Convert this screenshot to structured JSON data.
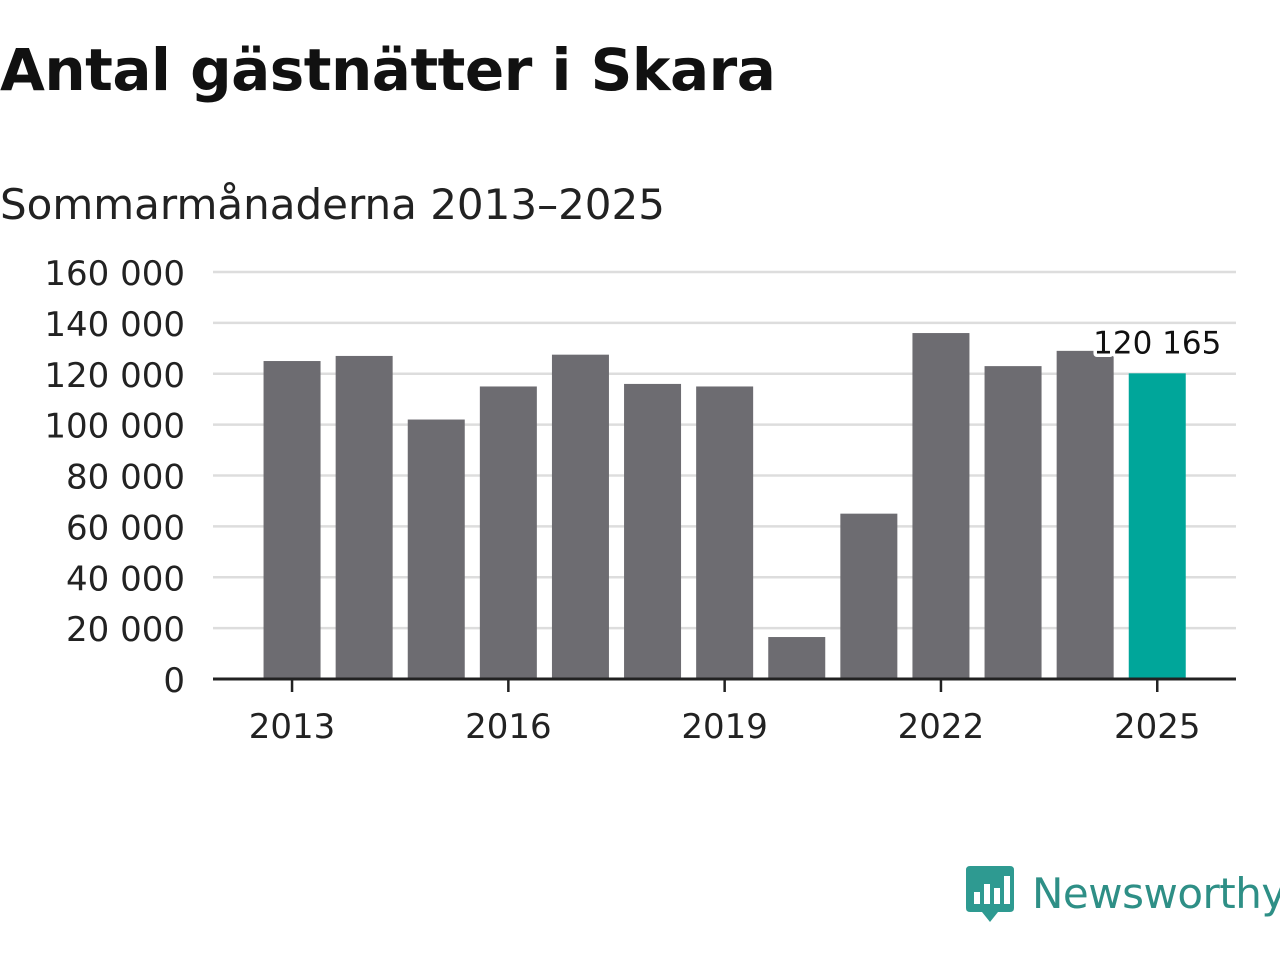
{
  "title": "Antal gästnätter i Skara",
  "subtitle": "Sommarmånaderna 2013–2025",
  "brand": {
    "name": "Newsworthy",
    "icon": "newsworthy-logo-icon",
    "color": "#2e9a91"
  },
  "colors": {
    "bar": "#6d6c71",
    "highlight": "#00a69a",
    "grid": "#dddddd",
    "axis": "#222222",
    "text": "#222222"
  },
  "chart_data": {
    "type": "bar",
    "title": "Antal gästnätter i Skara",
    "subtitle": "Sommarmånaderna 2013–2025",
    "xlabel": "",
    "ylabel": "",
    "categories": [
      "2013",
      "2014",
      "2015",
      "2016",
      "2017",
      "2018",
      "2019",
      "2020",
      "2021",
      "2022",
      "2023",
      "2024",
      "2025"
    ],
    "values": [
      125000,
      127000,
      102000,
      115000,
      127500,
      116000,
      115000,
      16500,
      65000,
      136000,
      123000,
      129000,
      120165
    ],
    "highlight_index": 12,
    "value_labels": [
      {
        "index": 12,
        "text": "120 165"
      }
    ],
    "x_ticks": [
      "2013",
      "2016",
      "2019",
      "2022",
      "2025"
    ],
    "y_ticks": [
      "0",
      "20 000",
      "40 000",
      "60 000",
      "80 000",
      "100 000",
      "120 000",
      "140 000",
      "160 000"
    ],
    "ylim": [
      0,
      160000
    ],
    "grid": true,
    "legend": "none"
  }
}
